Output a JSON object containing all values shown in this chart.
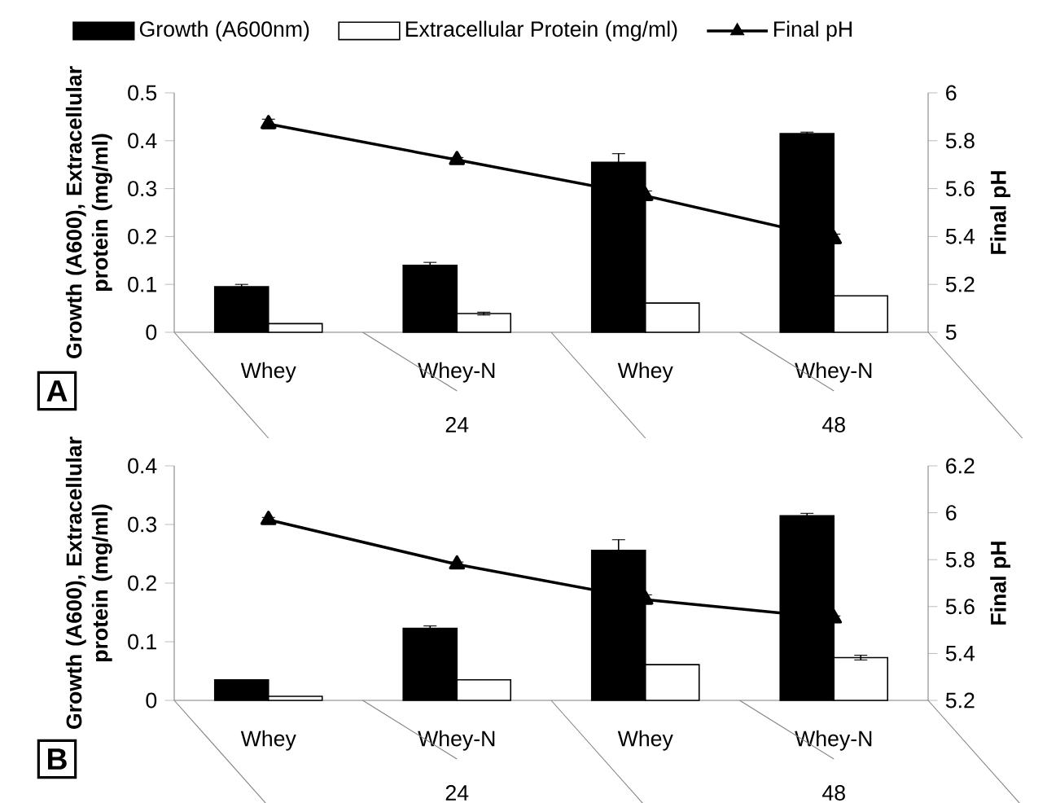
{
  "chart_data": [
    {
      "type": "bar",
      "categories": [
        "Whey",
        "Whey-N",
        "Whey",
        "Whey-N"
      ],
      "ylabel": "Growth (A600), Extracellular protein (mg/ml)",
      "y2label": "Final pH",
      "ylim": [
        0,
        0.5
      ],
      "yticks": [
        0,
        0.1,
        0.2,
        0.3,
        0.4,
        0.5
      ],
      "y2lim": [
        5,
        6
      ],
      "y2ticks": [
        5,
        5.2,
        5.4,
        5.6,
        5.8,
        6
      ],
      "legend": "top",
      "marker": "triangle",
      "annotations": [
        "A",
        "24",
        "48"
      ],
      "series": [
        {
          "name": "Growth (A600nm)",
          "color": "#000000",
          "values": [
            0.095,
            0.14,
            0.355,
            0.415
          ],
          "errors": [
            0.005,
            0.006,
            0.018,
            0.003
          ]
        },
        {
          "name": "Extracellular Protein (mg/ml)",
          "color": "#ffffff",
          "values": [
            0.018,
            0.039,
            0.061,
            0.076
          ],
          "errors": [
            null,
            0.003,
            null,
            null
          ]
        },
        {
          "name": "Final pH",
          "type": "line",
          "axis": "y2",
          "color": "#000000",
          "values": [
            5.87,
            5.72,
            5.57,
            5.39
          ],
          "errors": [
            0.02,
            0.01,
            0.02,
            0.02
          ]
        }
      ]
    },
    {
      "type": "bar",
      "categories": [
        "Whey",
        "Whey-N",
        "Whey",
        "Whey-N"
      ],
      "ylabel": "Growth (A600), Extracellular protein (mg/ml)",
      "y2label": "Final pH",
      "ylim": [
        0,
        0.4
      ],
      "yticks": [
        0,
        0.1,
        0.2,
        0.3,
        0.4
      ],
      "y2lim": [
        5.2,
        6.2
      ],
      "y2ticks": [
        5.2,
        5.4,
        5.6,
        5.8,
        6,
        6.2
      ],
      "marker": "triangle",
      "annotations": [
        "B",
        "24",
        "48"
      ],
      "series": [
        {
          "color": "#000000",
          "values": [
            0.035,
            0.123,
            0.256,
            0.315
          ],
          "errors": [
            null,
            0.004,
            0.018,
            0.004
          ]
        },
        {
          "color": "#ffffff",
          "values": [
            0.007,
            0.035,
            0.061,
            0.073
          ],
          "errors": [
            null,
            null,
            null,
            0.004
          ]
        },
        {
          "type": "line",
          "axis": "y2",
          "color": "#000000",
          "values": [
            5.97,
            5.78,
            5.63,
            5.55
          ],
          "errors": [
            0.01,
            0.01,
            0.02,
            0.01
          ]
        }
      ]
    }
  ]
}
